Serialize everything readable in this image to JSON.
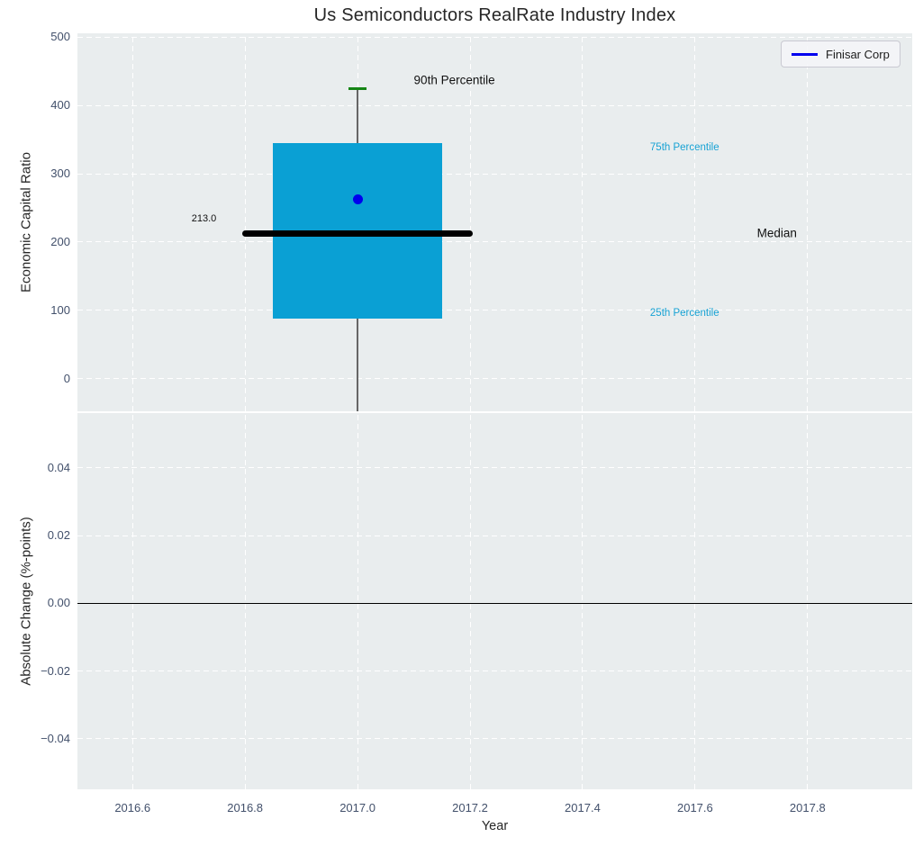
{
  "chart_data": [
    {
      "type": "box",
      "title": "Us Semiconductors RealRate Industry Index",
      "ylabel": "Economic Capital Ratio",
      "xlim": [
        2016.502,
        2017.986
      ],
      "ylim": [
        -47.4,
        505.3
      ],
      "grid": true,
      "yticks": {
        "values": [
          0,
          100,
          200,
          300,
          400,
          500
        ],
        "labels": [
          "0",
          "100",
          "200",
          "300",
          "400",
          "500"
        ]
      },
      "xticks": {
        "values": [
          2016.6,
          2016.8,
          2017.0,
          2017.2,
          2017.4,
          2017.6,
          2017.8
        ],
        "labels": []
      },
      "legend": {
        "label": "Finisar Corp",
        "line_color": "#0000ee",
        "position": "upper right"
      },
      "box": {
        "center_x": 2017.0,
        "box_x_range": [
          2016.85,
          2017.15
        ],
        "q1": 88,
        "q3": 345,
        "median": 213,
        "median_line_x_range": [
          2016.8,
          2017.2
        ],
        "p90": 425,
        "whisker_extends_below_axis": true,
        "colors": {
          "box_fill": "#0aa0d4",
          "median_line": "#000000",
          "p90_cap": "#158515",
          "whisker": "#666666"
        }
      },
      "company_point": {
        "label": "Finisar Corp",
        "x": 2017.0,
        "y": 262,
        "color": "#0000ee"
      },
      "annotations": [
        {
          "text": "213.0",
          "x": 2016.749,
          "y": 234,
          "color": "#111111"
        },
        {
          "text": "90th Percentile",
          "x": 2017.1,
          "y": 437,
          "color": "#111111"
        },
        {
          "text": "75th Percentile",
          "x": 2017.52,
          "y": 338,
          "color": "#17a2d4"
        },
        {
          "text": "25th Percentile",
          "x": 2017.52,
          "y": 96,
          "color": "#17a2d4"
        },
        {
          "text": "Median",
          "x": 2017.71,
          "y": 213,
          "color": "#111111"
        }
      ]
    },
    {
      "type": "line",
      "ylabel": "Absolute Change (%-points)",
      "xlabel": "Year",
      "xlim": [
        2016.502,
        2017.986
      ],
      "ylim": [
        -0.0549,
        0.0562
      ],
      "grid": true,
      "yticks": {
        "values": [
          0.04,
          0.02,
          0,
          -0.02,
          -0.04
        ],
        "labels": [
          "0.04",
          "0.02",
          "0.00",
          "−0.02",
          "−0.04"
        ]
      },
      "xticks": {
        "values": [
          2016.6,
          2016.8,
          2017.0,
          2017.2,
          2017.4,
          2017.6,
          2017.8
        ],
        "labels": [
          "2016.6",
          "2016.8",
          "2017.0",
          "2017.2",
          "2017.4",
          "2017.6",
          "2017.8"
        ]
      },
      "zero_line": {
        "y": 0.0,
        "color": "#000000"
      },
      "series": []
    }
  ]
}
